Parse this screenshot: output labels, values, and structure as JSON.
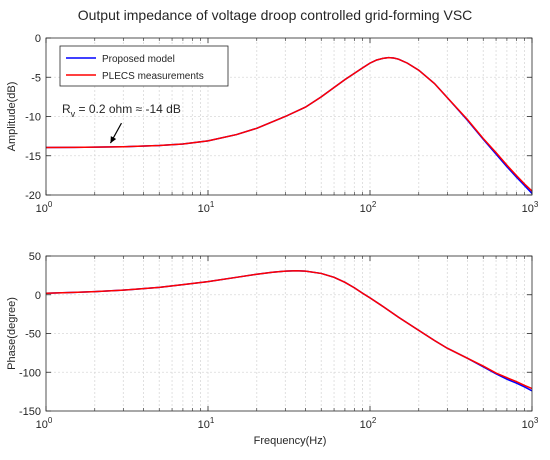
{
  "figure": {
    "title": "Output impedance of voltage droop controlled grid-forming VSC",
    "xlabel": "Frequency(Hz)"
  },
  "colors": {
    "proposed": "#0000ff",
    "plecs": "#ff0000",
    "axis": "#262626",
    "grid": "#d9d9d9"
  },
  "chart_data": [
    {
      "type": "line",
      "panel": "amplitude",
      "xscale": "log",
      "xlim": [
        1,
        1000
      ],
      "ylim": [
        -20,
        0
      ],
      "xlabel": "",
      "ylabel": "Amplitude(dB)",
      "grid": true,
      "legend": "top-left",
      "xticks": [
        1,
        10,
        100,
        1000
      ],
      "yticks": [
        -20,
        -15,
        -10,
        -5,
        0
      ],
      "annotation": {
        "text_parts": [
          "R",
          "v",
          " = 0.2 ohm ≈ -14 dB"
        ],
        "arrow_to": [
          2.5,
          -13.9
        ]
      },
      "series": [
        {
          "name": "Proposed model",
          "x": [
            1,
            1.5,
            2,
            3,
            5,
            7,
            10,
            15,
            20,
            30,
            40,
            50,
            60,
            70,
            80,
            90,
            100,
            110,
            120,
            130,
            140,
            150,
            170,
            200,
            250,
            300,
            400,
            500,
            600,
            700,
            800,
            900,
            1000
          ],
          "values": [
            -13.95,
            -13.93,
            -13.9,
            -13.85,
            -13.7,
            -13.5,
            -13.1,
            -12.3,
            -11.5,
            -10,
            -8.8,
            -7.5,
            -6.3,
            -5.3,
            -4.5,
            -3.8,
            -3.2,
            -2.8,
            -2.6,
            -2.5,
            -2.55,
            -2.7,
            -3.2,
            -4.1,
            -5.8,
            -7.6,
            -10.5,
            -12.9,
            -14.8,
            -16.4,
            -17.7,
            -18.8,
            -19.8
          ]
        },
        {
          "name": "PLECS measurements",
          "x": [
            1,
            1.5,
            2,
            3,
            5,
            7,
            10,
            15,
            20,
            30,
            40,
            50,
            60,
            70,
            80,
            90,
            100,
            110,
            120,
            130,
            140,
            150,
            170,
            200,
            250,
            300,
            400,
            500,
            600,
            700,
            800,
            900,
            1000
          ],
          "values": [
            -13.95,
            -13.93,
            -13.9,
            -13.85,
            -13.7,
            -13.5,
            -13.1,
            -12.3,
            -11.5,
            -10,
            -8.8,
            -7.5,
            -6.3,
            -5.3,
            -4.5,
            -3.8,
            -3.2,
            -2.8,
            -2.6,
            -2.5,
            -2.55,
            -2.7,
            -3.2,
            -4.1,
            -5.8,
            -7.6,
            -10.4,
            -12.8,
            -14.6,
            -16.2,
            -17.5,
            -18.6,
            -19.5
          ]
        }
      ]
    },
    {
      "type": "line",
      "panel": "phase",
      "xscale": "log",
      "xlim": [
        1,
        1000
      ],
      "ylim": [
        -150,
        50
      ],
      "xlabel": "Frequency(Hz)",
      "ylabel": "Phase(degree)",
      "grid": true,
      "xticks": [
        1,
        10,
        100,
        1000
      ],
      "yticks": [
        -150,
        -100,
        -50,
        0,
        50
      ],
      "series": [
        {
          "name": "Proposed model",
          "x": [
            1,
            1.5,
            2,
            3,
            5,
            7,
            10,
            15,
            20,
            25,
            30,
            35,
            40,
            50,
            60,
            70,
            80,
            90,
            100,
            120,
            150,
            200,
            250,
            300,
            400,
            500,
            600,
            700,
            800,
            900,
            1000
          ],
          "values": [
            2,
            3,
            4,
            6,
            9.5,
            13,
            17,
            22.5,
            26.5,
            29,
            30.5,
            31,
            30.5,
            27.5,
            22.5,
            16,
            9,
            2,
            -4,
            -15,
            -29,
            -46,
            -59,
            -69,
            -82,
            -93,
            -102,
            -109,
            -114,
            -119,
            -124
          ]
        },
        {
          "name": "PLECS measurements",
          "x": [
            1,
            1.5,
            2,
            3,
            5,
            7,
            10,
            15,
            20,
            25,
            30,
            35,
            40,
            50,
            60,
            70,
            80,
            90,
            100,
            120,
            150,
            200,
            250,
            300,
            400,
            500,
            600,
            700,
            800,
            900,
            1000
          ],
          "values": [
            2,
            3,
            4,
            6,
            9.5,
            13,
            17,
            22.5,
            26.5,
            29,
            30.5,
            31,
            30.5,
            27.5,
            22.5,
            16,
            9,
            2,
            -4,
            -15,
            -29,
            -46,
            -59,
            -69,
            -82,
            -92,
            -101,
            -107,
            -112,
            -117,
            -121
          ]
        }
      ]
    }
  ]
}
